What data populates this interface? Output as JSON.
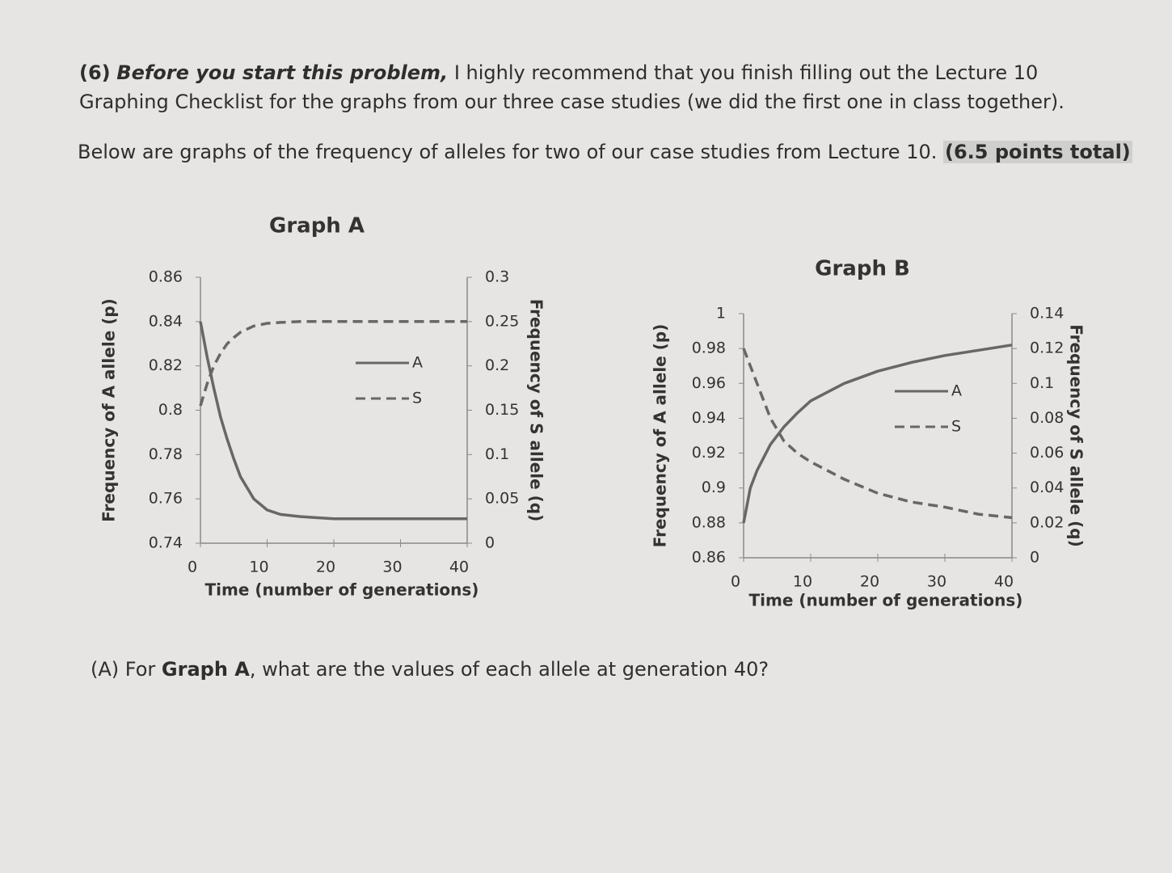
{
  "problem": {
    "number": "(6)",
    "lead": "Before you start this problem,",
    "text": "I highly recommend that you finish filling out the Lecture 10 Graphing Checklist for the graphs from our three case studies (we did the first one in class together)."
  },
  "intro": {
    "text": "Below are graphs of the frequency of alleles for two of our case studies from Lecture 10.",
    "points": "(6.5 points total)"
  },
  "chart_data": [
    {
      "type": "line",
      "title": "Graph A",
      "xlabel": "Time (number of generations)",
      "ylabel": "Frequency of A allele (p)",
      "y2label": "Frequency of S allele (q)",
      "x": [
        0,
        1,
        2,
        3,
        4,
        5,
        6,
        8,
        10,
        12,
        15,
        20,
        30,
        40
      ],
      "xlim": [
        0,
        40
      ],
      "xticks": [
        0,
        10,
        20,
        30,
        40
      ],
      "ylim": [
        0.74,
        0.86
      ],
      "yticks": [
        0.74,
        0.76,
        0.78,
        0.8,
        0.82,
        0.84,
        0.86
      ],
      "y2lim": [
        0,
        0.3
      ],
      "y2ticks": [
        0,
        0.05,
        0.1,
        0.15,
        0.2,
        0.25,
        0.3
      ],
      "series": [
        {
          "name": "A",
          "color": "#676767",
          "style": "solid",
          "values": [
            0.84,
            0.824,
            0.81,
            0.797,
            0.787,
            0.778,
            0.77,
            0.76,
            0.755,
            0.753,
            0.752,
            0.751,
            0.751,
            0.751
          ]
        },
        {
          "name": "S",
          "color": "#676767",
          "style": "dashed",
          "axis": "y2",
          "values": [
            0.155,
            0.18,
            0.2,
            0.214,
            0.225,
            0.232,
            0.238,
            0.245,
            0.248,
            0.249,
            0.25,
            0.25,
            0.25,
            0.25
          ]
        }
      ]
    },
    {
      "type": "line",
      "title": "Graph B",
      "xlabel": "Time (number of generations)",
      "ylabel": "Frequency of A allele (p)",
      "y2label": "Frequency of S allele (q)",
      "x": [
        0,
        1,
        2,
        4,
        6,
        8,
        10,
        15,
        20,
        25,
        30,
        35,
        40
      ],
      "xlim": [
        0,
        40
      ],
      "xticks": [
        0,
        10,
        20,
        30,
        40
      ],
      "ylim": [
        0.86,
        1
      ],
      "yticks": [
        0.86,
        0.88,
        0.9,
        0.92,
        0.94,
        0.96,
        0.98,
        1
      ],
      "y2lim": [
        0,
        0.14
      ],
      "y2ticks": [
        0,
        0.02,
        0.04,
        0.06,
        0.08,
        0.1,
        0.12,
        0.14
      ],
      "series": [
        {
          "name": "A",
          "color": "#676767",
          "style": "solid",
          "values": [
            0.88,
            0.9,
            0.91,
            0.925,
            0.935,
            0.943,
            0.95,
            0.96,
            0.967,
            0.972,
            0.976,
            0.979,
            0.982
          ]
        },
        {
          "name": "S",
          "color": "#676767",
          "style": "dashed",
          "axis": "y2",
          "values": [
            0.12,
            0.11,
            0.1,
            0.08,
            0.067,
            0.06,
            0.055,
            0.045,
            0.037,
            0.032,
            0.029,
            0.025,
            0.023
          ]
        }
      ]
    }
  ],
  "question": {
    "prefix": "(A) For",
    "bold": "Graph A",
    "suffix": ", what are the values of each allele at generation 40?"
  }
}
